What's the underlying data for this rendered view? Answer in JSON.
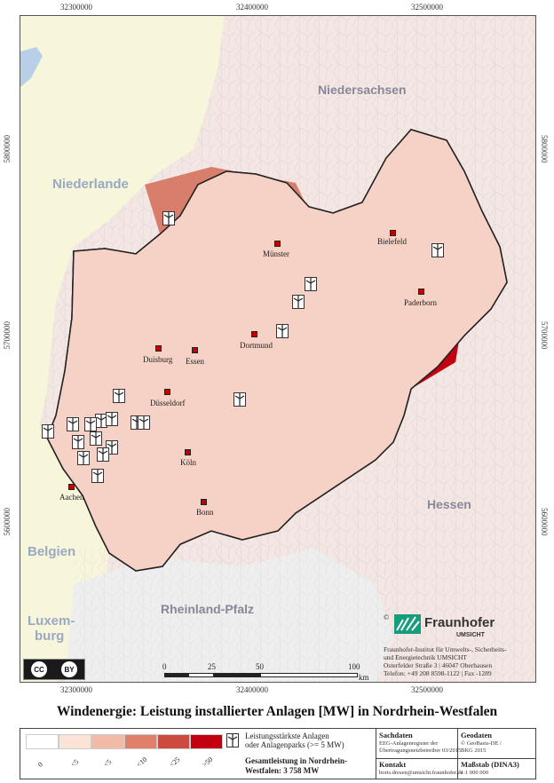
{
  "title": "Windenergie: Leistung installierter Anlagen [MW] in Nordrhein-Westfalen",
  "coords": {
    "top": [
      "32300000",
      "32400000",
      "32500000"
    ],
    "bottom": [
      "32300000",
      "32400000",
      "32500000"
    ],
    "left": [
      "5800000",
      "5700000",
      "5600000"
    ],
    "right": [
      "5800000",
      "5700000",
      "5600000"
    ]
  },
  "countries": {
    "niederlande": "Niederlande",
    "belgien": "Belgien",
    "luxemburg_1": "Luxem-",
    "luxemburg_2": "burg"
  },
  "states": {
    "niedersachsen": "Niedersachsen",
    "hessen": "Hessen",
    "rheinland_pfalz": "Rheinland-Pfalz"
  },
  "cities": {
    "muenster": "Münster",
    "bielefeld": "Bielefeld",
    "paderborn": "Paderborn",
    "dortmund": "Dortmund",
    "duisburg": "Duisburg",
    "essen": "Essen",
    "duesseldorf": "Düsseldorf",
    "koeln": "Köln",
    "aachen": "Aachen",
    "bonn": "Bonn"
  },
  "credits": {
    "copyright": "©",
    "brand": "Fraunhofer",
    "unit": "UMSICHT",
    "line1": "Fraunhofer-Institut für Umwelts-, Sicherheits-",
    "line2": "und Energietechnik UMSICHT",
    "line3": "Osterfelder Straße 3 | 46047 Oberhausen",
    "line4": "Telefon: +49 208 8598-1122 | Fax -1289"
  },
  "scale": {
    "labels": [
      "0",
      "25",
      "50",
      "100"
    ],
    "unit": "km"
  },
  "license": {
    "cc": "CC",
    "by": "BY"
  },
  "legend": {
    "classes": [
      {
        "label": "0",
        "color": "#ffffff"
      },
      {
        "label": "<5",
        "color": "#fbe3d8"
      },
      {
        "label": "<5",
        "color": "#f2bba5"
      },
      {
        "label": "<10",
        "color": "#e0806a"
      },
      {
        "label": "<25",
        "color": "#cc4a3e"
      },
      {
        "label": ">50",
        "color": "#c30012"
      }
    ],
    "turbine_desc_1": "Leistungsstärkste Anlagen",
    "turbine_desc_2": "oder Anlagenparks (>= 5 MW)",
    "total_1": "Gesamtleistung in Nordrhein-",
    "total_2": "Westfalen: 3 758 MW",
    "sachdaten_head": "Sachdaten",
    "sachdaten_1": "EEG-Anlagenregister der",
    "sachdaten_2": "Übertragungsnetzbetreiber 03/2015",
    "geodaten_head": "Geodaten",
    "geodaten_1": "© GeoBasis-DE /",
    "geodaten_2": "BKG 2015",
    "kontakt_head": "Kontakt",
    "kontakt_1": "boris.dresen@umsicht.fraunhofer.de",
    "massstab_head": "Maßstab (DINA3)",
    "massstab_1": "1:1 000 000"
  }
}
